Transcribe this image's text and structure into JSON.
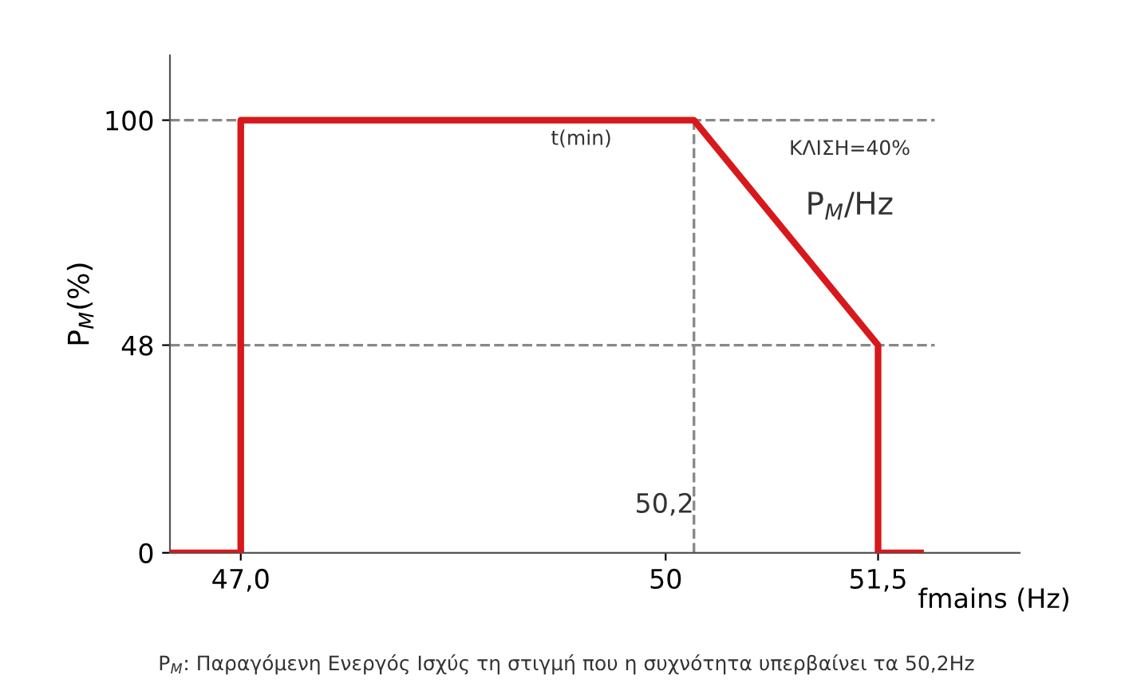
{
  "chart_data": {
    "type": "line",
    "x": [
      46.5,
      47.0,
      47.0,
      50.2,
      51.5,
      51.5,
      51.8
    ],
    "series": [
      {
        "color": "#d7191c",
        "values": [
          0,
          0,
          100,
          100,
          48,
          0,
          0
        ]
      }
    ],
    "xlim": [
      46.5,
      52.5
    ],
    "ylim": [
      0,
      115
    ],
    "xticks": [
      {
        "value": 47.0,
        "label": "47,0"
      },
      50,
      {
        "value": 51.5,
        "label": "51,5"
      }
    ],
    "yticks": [
      0,
      48,
      100
    ],
    "xlabel": "fmains (Hz)",
    "ylabel": "P$_{M}$(%)",
    "ref_lines": [
      {
        "axis": "y",
        "value": 100,
        "color": "#888888",
        "line_style": "dashed"
      },
      {
        "axis": "y",
        "value": 48,
        "color": "#888888",
        "line_style": "dashed"
      },
      {
        "axis": "x",
        "value": 50.2,
        "label": "50,2",
        "color": "#888888",
        "line_style": "dashed"
      }
    ],
    "annotations": [
      "t(min)",
      "ΚΛΙΣΗ=40%",
      "P$_{M}$/Hz",
      "P$_{M}$: Παραγόμενη Ενεργός Ισχύς τη στιγμή που η συχνότητα υπερβαίνει τα 50,2Hz"
    ],
    "grid": false,
    "legend": false,
    "marker": "none",
    "line_style": "solid"
  }
}
